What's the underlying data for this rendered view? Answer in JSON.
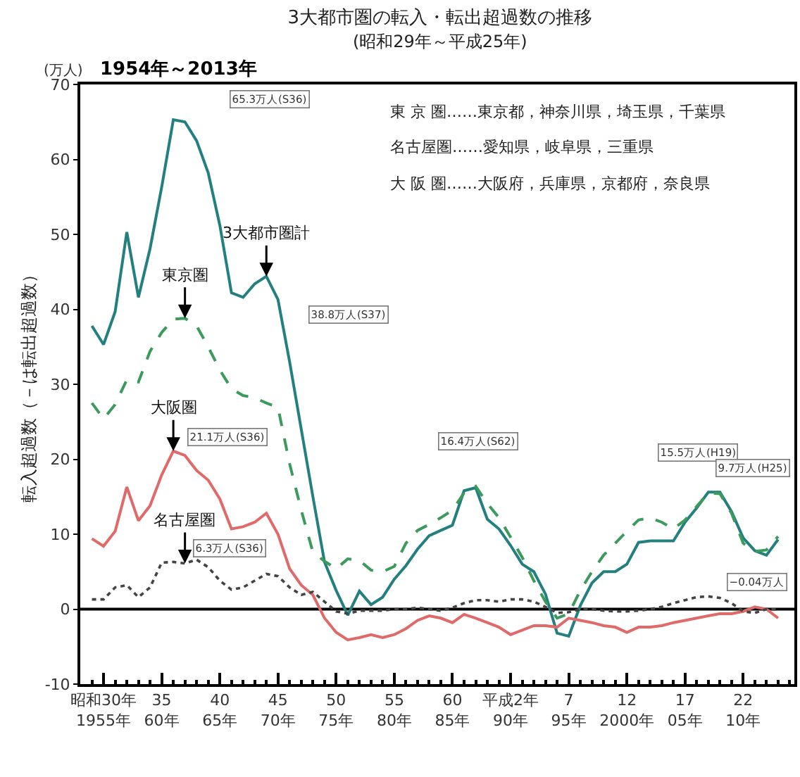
{
  "chart_data": {
    "type": "line",
    "title": "3大都市圏の転入・転出超過数の推移",
    "subtitle": "(昭和29年～平成25年)",
    "ylabel": "転入超過数（－は転出超過数）",
    "categories": [
      null,
      "昭和30年\n1955年",
      null,
      null,
      null,
      null,
      "35\n60年",
      null,
      null,
      null,
      null,
      "40\n65年",
      null,
      null,
      null,
      null,
      "45\n70年",
      null,
      null,
      null,
      null,
      "50\n75年",
      null,
      null,
      null,
      null,
      "55\n80年",
      null,
      null,
      null,
      null,
      "60\n85年",
      null,
      null,
      null,
      null,
      "平成2年\n90年",
      null,
      null,
      null,
      null,
      "7\n95年",
      null,
      null,
      null,
      null,
      "12\n2000年",
      null,
      null,
      null,
      null,
      "17\n05年",
      null,
      null,
      null,
      null,
      "22\n10年",
      null,
      null,
      null
    ],
    "series": [
      {
        "name": "3大都市圏計",
        "color": "#23807e",
        "line_style": "solid",
        "values": [
          37.8,
          35.3,
          39.7,
          50.3,
          41.6,
          48.1,
          56.3,
          65.3,
          65.0,
          62.5,
          58.2,
          51.2,
          42.2,
          41.6,
          43.4,
          44.4,
          41.3,
          33,
          24,
          15,
          6.3,
          2.5,
          -0.8,
          2.4,
          0.6,
          1.6,
          4,
          5.8,
          8,
          9.8,
          10.5,
          11.2,
          15.8,
          16.2,
          12,
          10.7,
          8.5,
          6,
          5,
          2,
          -3.2,
          -3.6,
          0.5,
          3.5,
          5,
          5,
          6,
          8.9,
          9.1,
          9.1,
          9.1,
          11.6,
          13.5,
          15.6,
          15.6,
          13,
          9.5,
          7.8,
          7.2,
          9.3
        ]
      },
      {
        "name": "東京圏",
        "color": "#3c9a5c",
        "line_style": "dashed",
        "values": [
          27.5,
          25.4,
          27.3,
          30.6,
          30.3,
          34.4,
          36.9,
          38.7,
          38.8,
          37.8,
          35,
          31.9,
          29.4,
          28.5,
          28.2,
          27.5,
          26.9,
          19.4,
          13.2,
          7.6,
          6.4,
          5.4,
          6.7,
          6.5,
          5.2,
          5,
          5.7,
          8.8,
          10.5,
          11.3,
          12.2,
          13.2,
          15.5,
          16.4,
          14.1,
          12.2,
          9.6,
          6.9,
          3.8,
          1,
          -1.2,
          -0.6,
          2.5,
          5,
          7.2,
          8.8,
          10.4,
          11.9,
          12.2,
          11.6,
          10.7,
          11.9,
          13.7,
          15.5,
          15.4,
          12.8,
          8.8,
          7.7,
          7.9,
          9.7
        ]
      },
      {
        "name": "大阪圏",
        "color": "#e06a6a",
        "line_style": "solid",
        "values": [
          9.4,
          8.4,
          10.4,
          16.3,
          11.8,
          13.8,
          17.9,
          21.1,
          20.5,
          18.5,
          17.2,
          14.7,
          10.7,
          11,
          11.6,
          12.8,
          10,
          5.4,
          3.2,
          1.9,
          -1.2,
          -3.1,
          -4.1,
          -3.8,
          -3.4,
          -3.8,
          -3.4,
          -2.6,
          -1.5,
          -0.9,
          -1.2,
          -1.8,
          -0.7,
          -1.2,
          -1.8,
          -2.4,
          -3.4,
          -2.8,
          -2.2,
          -2.2,
          -2.4,
          -1.2,
          -1.5,
          -1.8,
          -2.2,
          -2.4,
          -3.1,
          -2.4,
          -2.4,
          -2.2,
          -1.8,
          -1.5,
          -1.2,
          -0.9,
          -0.6,
          -0.6,
          -0.3,
          0.3,
          0,
          -1.2
        ]
      },
      {
        "name": "名古屋圏",
        "color": "#444444",
        "line_style": "dotted",
        "values": [
          1.3,
          1.3,
          2.9,
          3.2,
          1.6,
          2.9,
          6.2,
          6.3,
          6.1,
          6.6,
          5.6,
          3.8,
          2.6,
          2.9,
          3.8,
          4.7,
          4.4,
          2.9,
          1.9,
          2.3,
          1,
          -0.3,
          -0.6,
          -0.2,
          -0.2,
          -0.2,
          0,
          0,
          0.2,
          0,
          -0.2,
          0.2,
          0.8,
          1.2,
          1.2,
          1,
          1.3,
          1.3,
          1,
          0.3,
          -0.5,
          -0.4,
          0,
          0,
          -0.2,
          -0.3,
          -0.3,
          -0.2,
          0,
          0.3,
          0.8,
          1.2,
          1.6,
          1.7,
          1.5,
          0.8,
          -0.3,
          -0.5,
          0,
          -0.04
        ]
      }
    ],
    "ylim": [
      -10,
      70
    ],
    "yticks": [
      -10,
      0,
      10,
      20,
      30,
      40,
      50,
      60,
      70
    ],
    "grid": false,
    "legend": false,
    "marker": "none",
    "ref_lines": [
      {
        "axis": "y",
        "value": 0,
        "color": "#000000"
      }
    ],
    "annotations": [
      "(万人)",
      "1954年～2013年",
      "東 京 圏……東京都，神奈川県，埼玉県，千葉県",
      "名古屋圏……愛知県，岐阜県，三重県",
      "大 阪 圏……大阪府，兵庫県，京都府，奈良県",
      "65.3万人(S36)",
      "38.8万人(S37)",
      "21.1万人(S36)",
      "6.3万人(S36)",
      "16.4万人(S62)",
      "15.5万人(H19)",
      "9.7万人(H25)",
      "−0.04万人"
    ]
  }
}
